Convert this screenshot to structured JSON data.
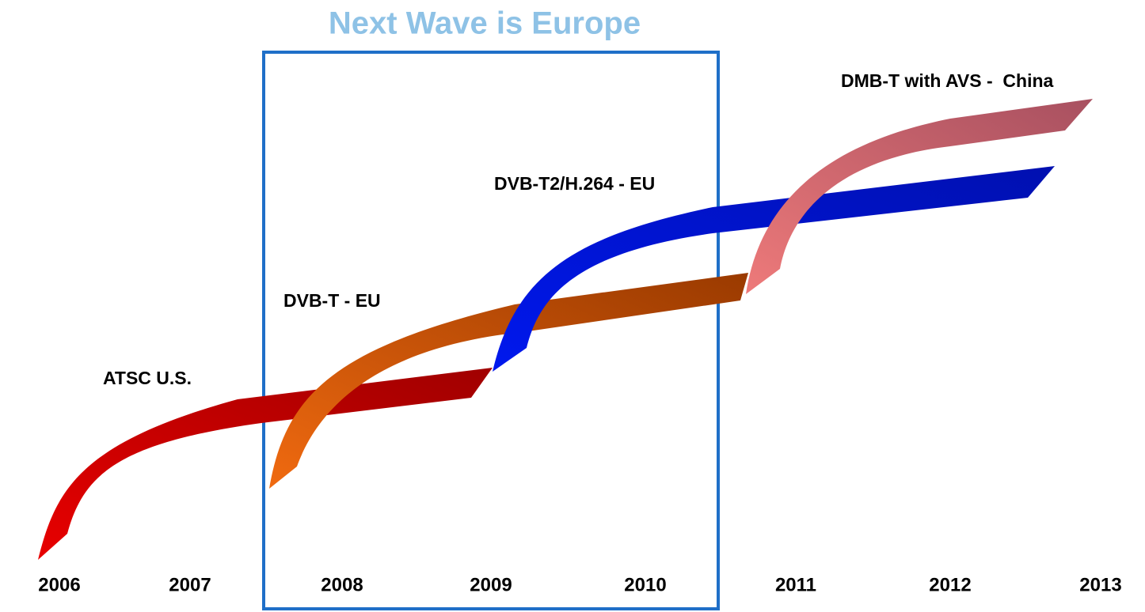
{
  "title": "Next Wave is Europe",
  "ribbons": [
    {
      "label": "ATSC U.S."
    },
    {
      "label": "DVB-T - EU"
    },
    {
      "label": "DVB-T2/H.264 - EU"
    },
    {
      "label": "DMB-T with AVS -  China"
    }
  ],
  "years": [
    "2006",
    "2007",
    "2008",
    "2009",
    "2010",
    "2011",
    "2012",
    "2013"
  ]
}
